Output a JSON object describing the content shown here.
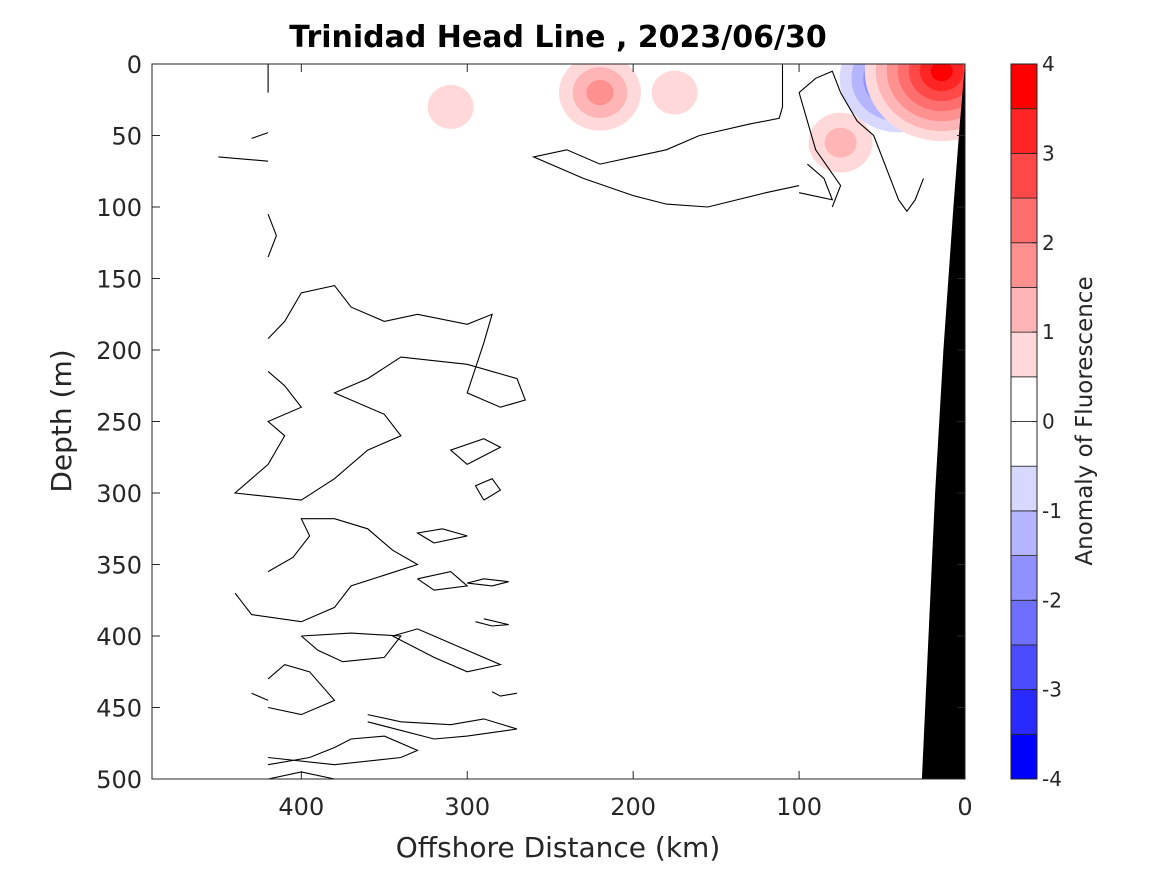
{
  "chart_data": {
    "type": "heatmap",
    "title": "Trinidad Head Line , 2023/06/30",
    "xlabel": "Offshore Distance (km)",
    "ylabel": "Depth (m)",
    "colorbar_label": "Anomaly of Fluorescence",
    "xlim": [
      490,
      0
    ],
    "ylim": [
      0,
      500
    ],
    "x_reversed": true,
    "y_reversed": true,
    "xticks": [
      400,
      300,
      200,
      100,
      0
    ],
    "yticks": [
      0,
      50,
      100,
      150,
      200,
      250,
      300,
      350,
      400,
      450,
      500
    ],
    "clim": [
      -4,
      4
    ],
    "cbar_ticks": [
      4,
      3,
      2,
      1,
      0,
      -1,
      -2,
      -3,
      -4
    ],
    "levels": [
      -4,
      -3.5,
      -3,
      -2.5,
      -2,
      -1.5,
      -1,
      -0.5,
      0,
      0.5,
      1,
      1.5,
      2,
      2.5,
      3,
      3.5,
      4
    ],
    "level_colors": [
      "#0000ff",
      "#2a2aff",
      "#4b4bff",
      "#6e6eff",
      "#9090ff",
      "#b4b4ff",
      "#d8d8ff",
      "#ffffff",
      "#ffffff",
      "#ffd9d9",
      "#ffb5b5",
      "#ff9090",
      "#ff6e6e",
      "#ff4949",
      "#ff2525",
      "#ff0000"
    ],
    "colors": {
      "negative_max": "#0000ff",
      "positive_max": "#ff0000",
      "bathymetry": "#000000",
      "contour_line": "#000000"
    },
    "anomaly_features": [
      {
        "x": 220,
        "y": 20,
        "value": 1.6
      },
      {
        "x": 310,
        "y": 30,
        "value": 0.7
      },
      {
        "x": 175,
        "y": 20,
        "value": 0.6
      },
      {
        "x": 75,
        "y": 55,
        "value": 1.1
      },
      {
        "x": 40,
        "y": 10,
        "value": -2.8
      },
      {
        "x": 14,
        "y": 5,
        "value": 3.5
      }
    ],
    "bathymetry": [
      [
        0,
        0
      ],
      [
        3,
        40
      ],
      [
        7,
        100
      ],
      [
        13,
        200
      ],
      [
        18,
        300
      ],
      [
        22,
        400
      ],
      [
        26,
        500
      ],
      [
        0,
        500
      ]
    ],
    "zero_contours": [
      [
        [
          420,
          20
        ],
        [
          420,
          0
        ]
      ],
      [
        [
          420,
          68
        ],
        [
          450,
          65
        ]
      ],
      [
        [
          420,
          48
        ],
        [
          430,
          52
        ]
      ],
      [
        [
          420,
          135
        ],
        [
          415,
          120
        ],
        [
          420,
          105
        ]
      ],
      [
        [
          420,
          192
        ],
        [
          410,
          180
        ],
        [
          400,
          160
        ],
        [
          380,
          155
        ],
        [
          370,
          170
        ],
        [
          350,
          180
        ],
        [
          330,
          175
        ],
        [
          300,
          182
        ],
        [
          285,
          175
        ],
        [
          290,
          195
        ],
        [
          300,
          230
        ],
        [
          280,
          240
        ],
        [
          265,
          235
        ],
        [
          270,
          220
        ],
        [
          300,
          210
        ],
        [
          340,
          205
        ],
        [
          360,
          220
        ],
        [
          380,
          230
        ],
        [
          350,
          245
        ],
        [
          340,
          260
        ],
        [
          360,
          270
        ],
        [
          380,
          290
        ],
        [
          400,
          305
        ],
        [
          440,
          300
        ],
        [
          420,
          280
        ],
        [
          410,
          260
        ],
        [
          420,
          250
        ],
        [
          400,
          240
        ],
        [
          410,
          225
        ],
        [
          420,
          215
        ]
      ],
      [
        [
          300,
          280
        ],
        [
          280,
          268
        ],
        [
          290,
          262
        ],
        [
          310,
          270
        ],
        [
          300,
          280
        ]
      ],
      [
        [
          290,
          305
        ],
        [
          280,
          298
        ],
        [
          285,
          290
        ],
        [
          295,
          295
        ],
        [
          290,
          305
        ]
      ],
      [
        [
          420,
          355
        ],
        [
          405,
          345
        ],
        [
          395,
          330
        ],
        [
          400,
          318
        ],
        [
          380,
          318
        ],
        [
          360,
          325
        ],
        [
          345,
          340
        ],
        [
          330,
          350
        ],
        [
          370,
          365
        ],
        [
          380,
          380
        ],
        [
          400,
          390
        ],
        [
          430,
          385
        ],
        [
          440,
          370
        ]
      ],
      [
        [
          320,
          335
        ],
        [
          300,
          330
        ],
        [
          315,
          325
        ],
        [
          330,
          328
        ],
        [
          320,
          335
        ]
      ],
      [
        [
          330,
          360
        ],
        [
          310,
          355
        ],
        [
          300,
          365
        ],
        [
          320,
          368
        ],
        [
          330,
          360
        ]
      ],
      [
        [
          290,
          360
        ],
        [
          275,
          362
        ],
        [
          285,
          365
        ],
        [
          300,
          363
        ],
        [
          290,
          360
        ]
      ],
      [
        [
          400,
          400
        ],
        [
          390,
          410
        ],
        [
          375,
          418
        ],
        [
          350,
          415
        ],
        [
          340,
          400
        ],
        [
          370,
          398
        ],
        [
          400,
          400
        ]
      ],
      [
        [
          345,
          400
        ],
        [
          330,
          395
        ],
        [
          310,
          405
        ],
        [
          280,
          420
        ],
        [
          300,
          425
        ],
        [
          320,
          415
        ],
        [
          345,
          400
        ]
      ],
      [
        [
          290,
          388
        ],
        [
          275,
          392
        ],
        [
          285,
          393
        ],
        [
          295,
          390
        ]
      ],
      [
        [
          270,
          440
        ],
        [
          280,
          442
        ],
        [
          285,
          439
        ]
      ],
      [
        [
          420,
          450
        ],
        [
          400,
          455
        ],
        [
          380,
          445
        ],
        [
          395,
          425
        ],
        [
          410,
          420
        ],
        [
          420,
          430
        ]
      ],
      [
        [
          420,
          445
        ],
        [
          430,
          440
        ]
      ],
      [
        [
          360,
          455
        ],
        [
          340,
          460
        ],
        [
          310,
          462
        ],
        [
          290,
          458
        ],
        [
          270,
          465
        ],
        [
          300,
          470
        ],
        [
          320,
          472
        ],
        [
          360,
          460
        ]
      ],
      [
        [
          420,
          490
        ],
        [
          395,
          485
        ],
        [
          380,
          478
        ],
        [
          370,
          472
        ],
        [
          350,
          470
        ],
        [
          330,
          480
        ],
        [
          340,
          485
        ],
        [
          380,
          490
        ],
        [
          420,
          485
        ]
      ],
      [
        [
          420,
          500
        ],
        [
          400,
          495
        ],
        [
          380,
          500
        ]
      ],
      [
        [
          100,
          85
        ],
        [
          120,
          90
        ],
        [
          155,
          100
        ],
        [
          180,
          98
        ],
        [
          200,
          92
        ],
        [
          230,
          80
        ],
        [
          260,
          65
        ],
        [
          240,
          60
        ],
        [
          220,
          70
        ],
        [
          200,
          65
        ],
        [
          180,
          60
        ],
        [
          160,
          50
        ],
        [
          130,
          42
        ],
        [
          112,
          38
        ],
        [
          110,
          30
        ],
        [
          110,
          10
        ],
        [
          110,
          0
        ]
      ],
      [
        [
          95,
          70
        ],
        [
          85,
          80
        ],
        [
          80,
          95
        ],
        [
          100,
          90
        ]
      ],
      [
        [
          80,
          100
        ],
        [
          75,
          85
        ],
        [
          90,
          60
        ],
        [
          95,
          40
        ],
        [
          100,
          20
        ],
        [
          90,
          10
        ],
        [
          80,
          5
        ],
        [
          75,
          20
        ],
        [
          65,
          40
        ],
        [
          55,
          50
        ],
        [
          50,
          65
        ],
        [
          45,
          80
        ],
        [
          40,
          95
        ],
        [
          35,
          103
        ],
        [
          30,
          95
        ],
        [
          25,
          80
        ]
      ]
    ]
  }
}
